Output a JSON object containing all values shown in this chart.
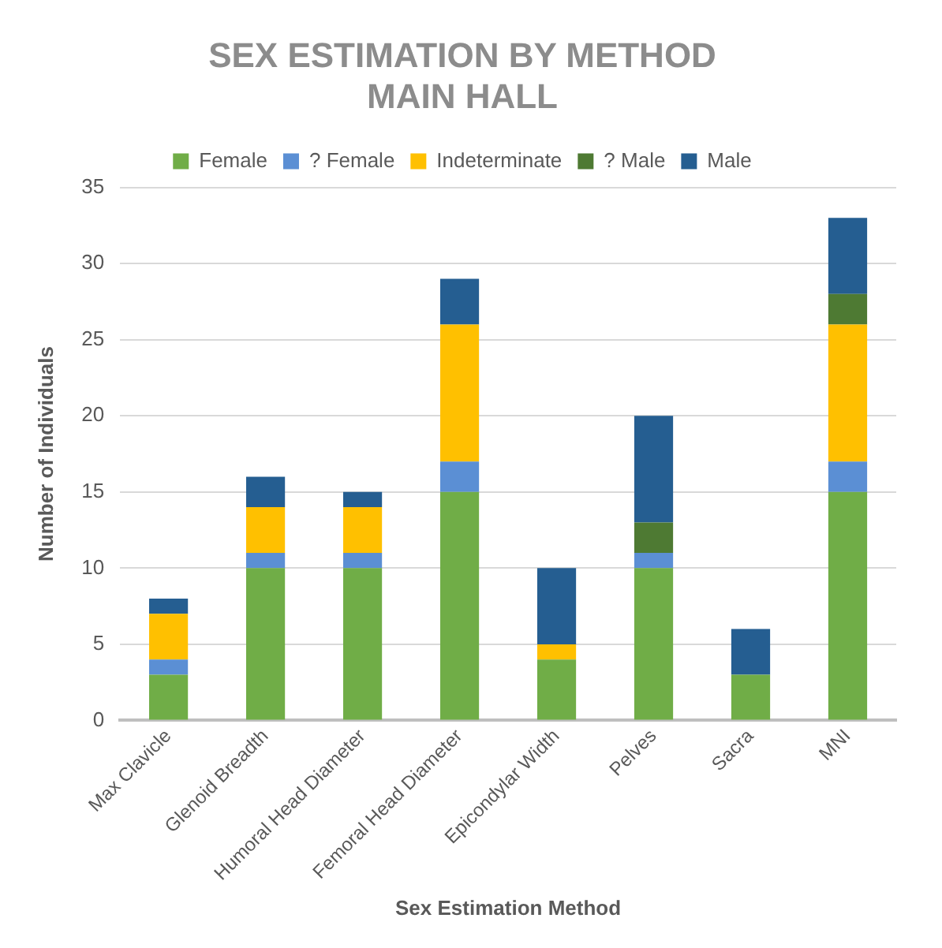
{
  "chart_data": {
    "type": "bar",
    "title": "SEX ESTIMATION BY METHOD\nMAIN HALL",
    "xlabel": "Sex Estimation Method",
    "ylabel": "Number of Individuals",
    "categories": [
      "Max Clavicle",
      "Glenoid Breadth",
      "Humoral Head Diameter",
      "Femoral Head Diameter",
      "Epicondylar Width",
      "Pelves",
      "Sacra",
      "MNI"
    ],
    "stacked": true,
    "ylim": [
      0,
      35
    ],
    "yticks": [
      0,
      5,
      10,
      15,
      20,
      25,
      30,
      35
    ],
    "grid": "y",
    "legend": "top",
    "series": [
      {
        "name": "Female",
        "color": "#70ad47",
        "values": [
          3,
          10,
          10,
          15,
          4,
          10,
          3,
          15
        ]
      },
      {
        "name": "? Female",
        "color": "#5b8fd4",
        "values": [
          1,
          1,
          1,
          2,
          0,
          1,
          0,
          2
        ]
      },
      {
        "name": "Indeterminate",
        "color": "#ffc000",
        "values": [
          3,
          3,
          3,
          9,
          1,
          0,
          0,
          9
        ]
      },
      {
        "name": "? Male",
        "color": "#4e7a33",
        "values": [
          0,
          0,
          0,
          0,
          0,
          2,
          0,
          2
        ]
      },
      {
        "name": "Male",
        "color": "#255e91",
        "values": [
          1,
          2,
          1,
          3,
          5,
          7,
          3,
          5
        ]
      }
    ]
  }
}
